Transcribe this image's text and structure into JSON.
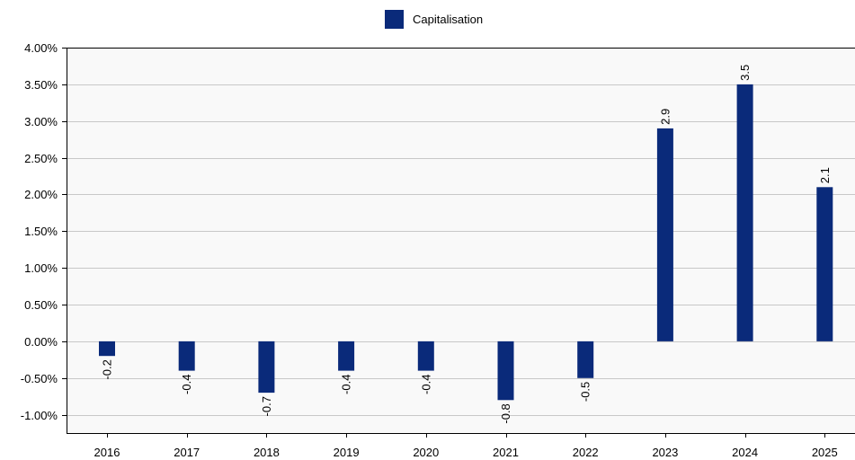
{
  "chart_data": {
    "type": "bar",
    "title": "",
    "xlabel": "",
    "ylabel": "",
    "categories": [
      "2016",
      "2017",
      "2018",
      "2019",
      "2020",
      "2021",
      "2022",
      "2023",
      "2024",
      "2025"
    ],
    "series": [
      {
        "name": "Capitalisation",
        "values": [
          -0.2,
          -0.4,
          -0.7,
          -0.4,
          -0.4,
          -0.8,
          -0.5,
          2.9,
          3.5,
          2.1
        ],
        "labels": [
          "-0.2",
          "-0.4",
          "-0.7",
          "-0.4",
          "-0.4",
          "-0.8",
          "-0.5",
          "2.9",
          "3.5",
          "2.1"
        ],
        "color": "#0a2a7a"
      }
    ],
    "ylim": [
      -1.25,
      4.0
    ],
    "yticks": [
      4.0,
      3.5,
      3.0,
      2.5,
      2.0,
      1.5,
      1.0,
      0.5,
      0.0,
      -0.5,
      -1.0
    ],
    "ytick_labels": [
      "4.00%",
      "3.50%",
      "3.00%",
      "2.50%",
      "2.00%",
      "1.50%",
      "1.00%",
      "0.50%",
      "0.00%",
      "-0.50%",
      "-1.00%"
    ],
    "grid": true,
    "legend_position": "top-center",
    "colors": {
      "plot_background": "#f9f9f9",
      "grid": "#c8c8c8",
      "axis": "#000000"
    }
  }
}
